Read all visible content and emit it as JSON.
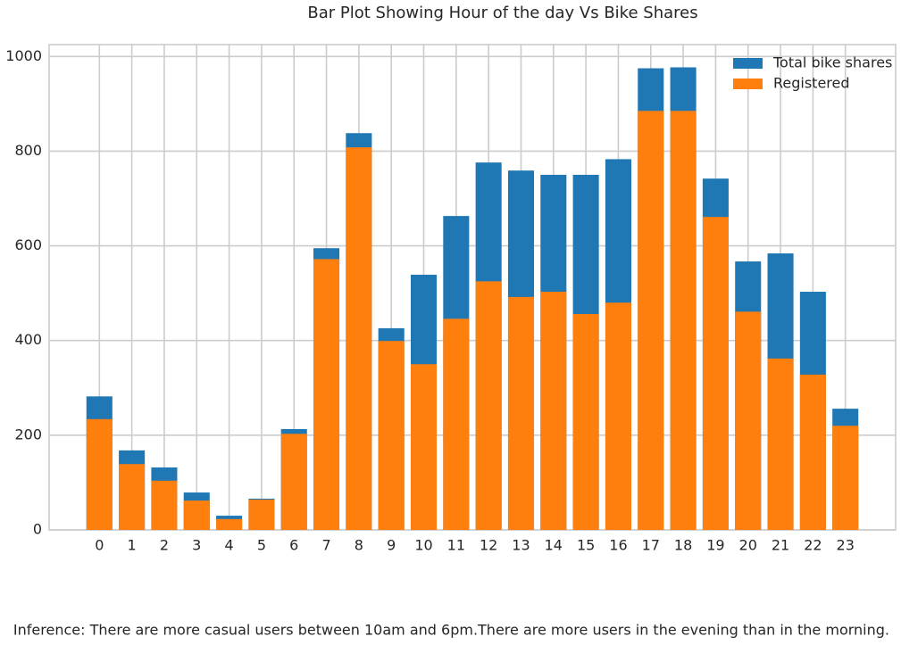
{
  "chart_data": {
    "type": "bar",
    "title": "Bar Plot Showing Hour of the day Vs Bike Shares",
    "x": [
      0,
      1,
      2,
      3,
      4,
      5,
      6,
      7,
      8,
      9,
      10,
      11,
      12,
      13,
      14,
      15,
      16,
      17,
      18,
      19,
      20,
      21,
      22,
      23
    ],
    "series": [
      {
        "name": "Total bike shares",
        "color": "#1f77b4",
        "values": [
          282,
          168,
          132,
          79,
          30,
          66,
          213,
          595,
          838,
          426,
          539,
          663,
          776,
          759,
          750,
          750,
          783,
          975,
          977,
          742,
          567,
          584,
          503,
          256
        ]
      },
      {
        "name": "Registered",
        "color": "#ff7f0e",
        "values": [
          234,
          139,
          104,
          62,
          23,
          64,
          203,
          572,
          808,
          399,
          350,
          446,
          525,
          492,
          503,
          456,
          480,
          885,
          885,
          661,
          461,
          362,
          328,
          220
        ]
      }
    ],
    "xlim": [
      -1.55,
      24.55
    ],
    "xticks": [
      0,
      1,
      2,
      3,
      4,
      5,
      6,
      7,
      8,
      9,
      10,
      11,
      12,
      13,
      14,
      15,
      16,
      17,
      18,
      19,
      20,
      21,
      22,
      23
    ],
    "ylim": [
      0,
      1025
    ],
    "yticks": [
      0,
      200,
      400,
      600,
      800,
      1000
    ],
    "grid": true,
    "legend": "upper right",
    "annotation": "Inference: There are more casual users between 10am and 6pm.There are more users in the evening than in the morning."
  }
}
